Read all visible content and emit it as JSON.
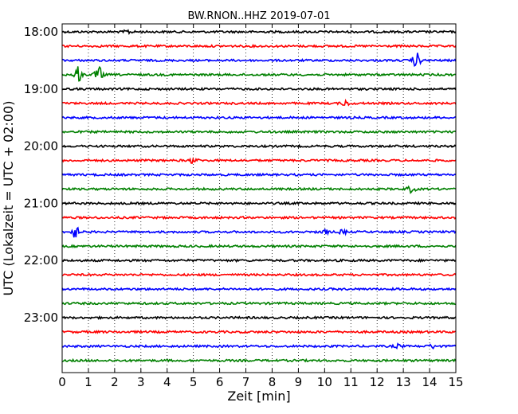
{
  "chart_data": {
    "type": "line",
    "title": "BW.RNON..HHZ 2019-07-01",
    "xlabel": "Zeit  [min]",
    "ylabel": "UTC (Lokalzeit = UTC + 02:00)",
    "xlim": [
      0,
      15
    ],
    "x_ticks": [
      "0",
      "1",
      "2",
      "3",
      "4",
      "5",
      "6",
      "7",
      "8",
      "9",
      "10",
      "11",
      "12",
      "13",
      "14",
      "15"
    ],
    "y_ticks": [
      "18:00",
      "19:00",
      "20:00",
      "21:00",
      "22:00",
      "23:00"
    ],
    "grid": "vertical dotted lines at each minute",
    "trace_colors": [
      "#000000",
      "#ff0000",
      "#0000ff",
      "#008000"
    ],
    "trace_start_times": [
      "18:00",
      "18:15",
      "18:30",
      "18:45",
      "19:00",
      "19:15",
      "19:30",
      "19:45",
      "20:00",
      "20:15",
      "20:30",
      "20:45",
      "21:00",
      "21:15",
      "21:30",
      "21:45",
      "22:00",
      "22:15",
      "22:30",
      "22:45",
      "23:00",
      "23:15",
      "23:30",
      "23:45"
    ],
    "events": [
      {
        "trace": "18:00",
        "minute": 2.5,
        "amplitude": 0.25
      },
      {
        "trace": "18:30",
        "minute": 13.5,
        "amplitude": 1.0
      },
      {
        "trace": "18:45",
        "minute": 0.6,
        "amplitude": 1.1
      },
      {
        "trace": "18:45",
        "minute": 1.4,
        "amplitude": 1.0
      },
      {
        "trace": "19:15",
        "minute": 10.8,
        "amplitude": 0.35
      },
      {
        "trace": "20:15",
        "minute": 5.0,
        "amplitude": 0.35
      },
      {
        "trace": "20:45",
        "minute": 13.3,
        "amplitude": 0.45
      },
      {
        "trace": "21:30",
        "minute": 0.5,
        "amplitude": 0.8
      },
      {
        "trace": "21:30",
        "minute": 10.0,
        "amplitude": 0.3
      },
      {
        "trace": "21:30",
        "minute": 10.7,
        "amplitude": 0.25
      },
      {
        "trace": "23:30",
        "minute": 12.8,
        "amplitude": 0.25
      },
      {
        "trace": "23:30",
        "minute": 14.1,
        "amplitude": 0.25
      }
    ]
  }
}
